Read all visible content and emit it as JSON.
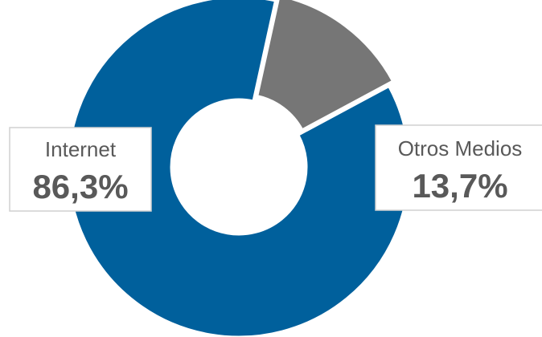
{
  "chart_data": {
    "type": "pie",
    "style": "donut",
    "categories": [
      "Internet",
      "Otros Medios"
    ],
    "values": [
      86.3,
      13.7
    ],
    "value_labels": [
      "86,3%",
      "13,7%"
    ],
    "colors": [
      "#00609C",
      "#767676"
    ],
    "title": "",
    "legend": "none"
  }
}
